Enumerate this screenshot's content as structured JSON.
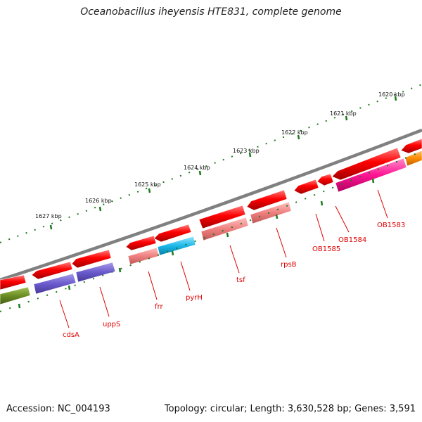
{
  "title": "Oceanobacillus iheyensis HTE831, complete genome",
  "footer": {
    "accession": "Accession: NC_004193",
    "summary": "Topology: circular; Length: 3,630,528 bp; Genes: 3,591"
  },
  "kbp_labels": [
    "1627 kbp",
    "1626 kbp",
    "1625 kbp",
    "1624 kbp",
    "1623 kbp",
    "1622 kbp",
    "1621 kbp",
    "1620 kbp"
  ],
  "gene_labels": [
    "cdsA",
    "uppS",
    "frr",
    "pyrH",
    "tsf",
    "rpsB",
    "OB1585",
    "OB1584",
    "OB1583"
  ],
  "colors": {
    "backbone": "#808080",
    "cds": "#ee0000",
    "ruler": "#1e7a1e",
    "gene_label": "#e00000",
    "cog_purple": "#6a5acd",
    "cog_pink": "#f08080",
    "cog_cyan": "#1ab8e8",
    "cog_magenta": "#ff1493",
    "cog_orange": "#ff8c00",
    "cog_olive": "#6b8e23"
  }
}
